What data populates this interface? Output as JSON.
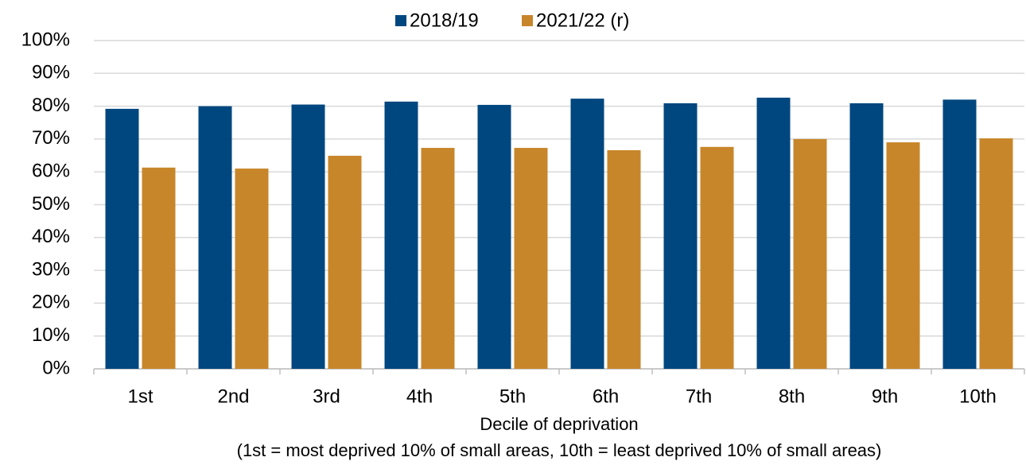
{
  "chart_data": {
    "type": "bar",
    "categories": [
      "1st",
      "2nd",
      "3rd",
      "4th",
      "5th",
      "6th",
      "7th",
      "8th",
      "9th",
      "10th"
    ],
    "series": [
      {
        "name": "2018/19",
        "color": "#00477f",
        "values": [
          79.2,
          80,
          80.5,
          81.4,
          80.4,
          82.3,
          80.9,
          82.6,
          80.9,
          82
        ]
      },
      {
        "name": "2021/22 (r)",
        "color": "#c8862a",
        "values": [
          61.3,
          61,
          64.9,
          67.3,
          67.3,
          66.6,
          67.6,
          70,
          69,
          70.2
        ]
      }
    ],
    "xlabel": "Decile of deprivation",
    "xlabel_note": "(1st = most deprived 10% of small areas, 10th = least deprived 10% of small areas)",
    "ylim": [
      0,
      100
    ],
    "yticks": [
      {
        "value": 0,
        "label": "0%"
      },
      {
        "value": 10,
        "label": "10%"
      },
      {
        "value": 20,
        "label": "20%"
      },
      {
        "value": 30,
        "label": "30%"
      },
      {
        "value": 40,
        "label": "40%"
      },
      {
        "value": 50,
        "label": "50%"
      },
      {
        "value": 60,
        "label": "60%"
      },
      {
        "value": 70,
        "label": "70%"
      },
      {
        "value": 80,
        "label": "80%"
      },
      {
        "value": 90,
        "label": "90%"
      },
      {
        "value": 100,
        "label": "100%"
      }
    ],
    "grid": true,
    "legend": "top"
  }
}
